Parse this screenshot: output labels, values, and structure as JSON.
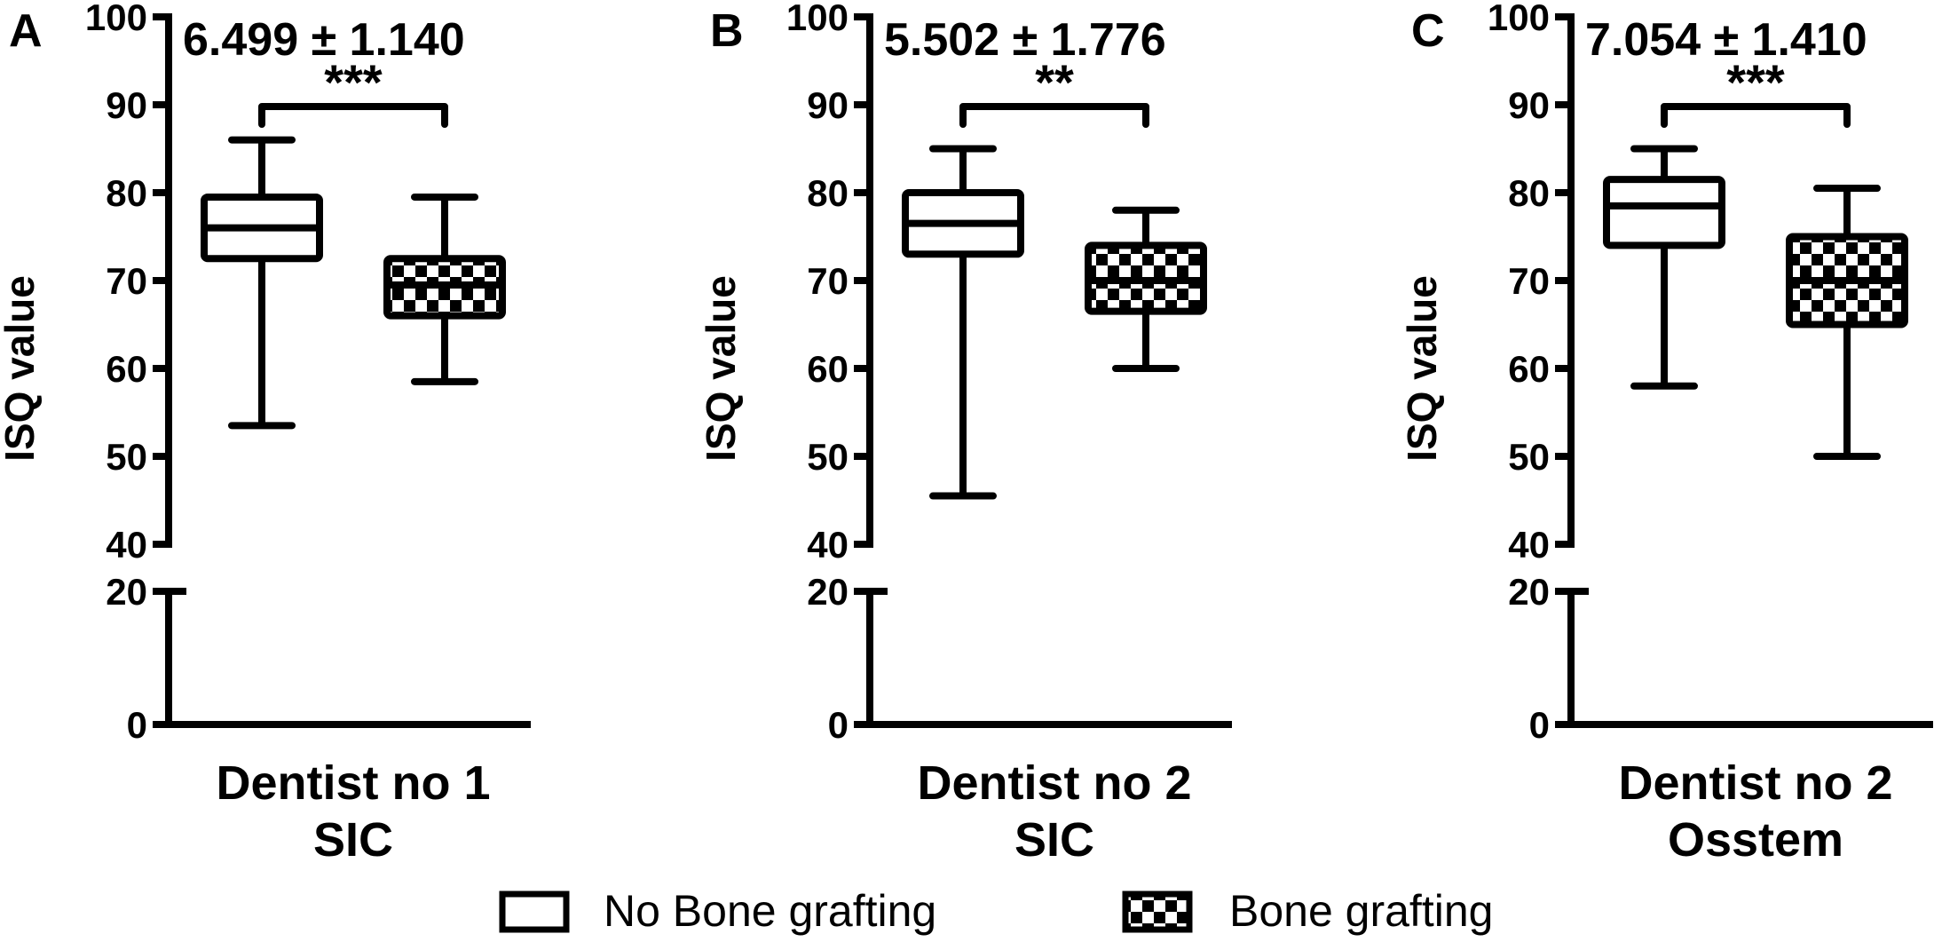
{
  "chart_data": [
    {
      "type": "box",
      "panel_label": "A",
      "stat_text": "6.499 ± 1.140",
      "significance": "***",
      "ylabel": "ISQ value",
      "xlabel_lines": [
        "Dentist no 1",
        "SIC"
      ],
      "y_upper_range": [
        40,
        100
      ],
      "y_lower_range": [
        0,
        20
      ],
      "y_upper_ticks": [
        "100",
        "90",
        "80",
        "70",
        "60",
        "50",
        "40"
      ],
      "y_lower_ticks": [
        "20",
        "0"
      ],
      "series": [
        {
          "name": "No Bone grafting",
          "min": 53.5,
          "q1": 72.5,
          "median": 76,
          "q3": 79.5,
          "max": 86
        },
        {
          "name": "Bone grafting",
          "min": 58.5,
          "q1": 66,
          "median": 69.5,
          "q3": 72.5,
          "max": 79.5
        }
      ]
    },
    {
      "type": "box",
      "panel_label": "B",
      "stat_text": "5.502 ± 1.776",
      "significance": "**",
      "ylabel": "ISQ value",
      "xlabel_lines": [
        "Dentist no 2",
        "SIC"
      ],
      "y_upper_range": [
        40,
        100
      ],
      "y_lower_range": [
        0,
        20
      ],
      "y_upper_ticks": [
        "100",
        "90",
        "80",
        "70",
        "60",
        "50",
        "40"
      ],
      "y_lower_ticks": [
        "20",
        "0"
      ],
      "series": [
        {
          "name": "No Bone grafting",
          "min": 45.5,
          "q1": 73,
          "median": 76.5,
          "q3": 80,
          "max": 85
        },
        {
          "name": "Bone grafting",
          "min": 60,
          "q1": 66.5,
          "median": 70,
          "q3": 74,
          "max": 78
        }
      ]
    },
    {
      "type": "box",
      "panel_label": "C",
      "stat_text": "7.054 ± 1.410",
      "significance": "***",
      "ylabel": "ISQ value",
      "xlabel_lines": [
        "Dentist no 2",
        "Osstem"
      ],
      "y_upper_range": [
        40,
        100
      ],
      "y_lower_range": [
        0,
        20
      ],
      "y_upper_ticks": [
        "100",
        "90",
        "80",
        "70",
        "60",
        "50",
        "40"
      ],
      "y_lower_ticks": [
        "20",
        "0"
      ],
      "series": [
        {
          "name": "No Bone grafting",
          "min": 58,
          "q1": 74,
          "median": 78.5,
          "q3": 81.5,
          "max": 85
        },
        {
          "name": "Bone grafting",
          "min": 50,
          "q1": 65,
          "median": 70,
          "q3": 75,
          "max": 80.5
        }
      ]
    }
  ],
  "legend": {
    "placement": "bottom-center",
    "items": [
      {
        "label": "No Bone grafting",
        "pattern": "white"
      },
      {
        "label": "Bone grafting",
        "pattern": "checkerboard"
      }
    ]
  }
}
